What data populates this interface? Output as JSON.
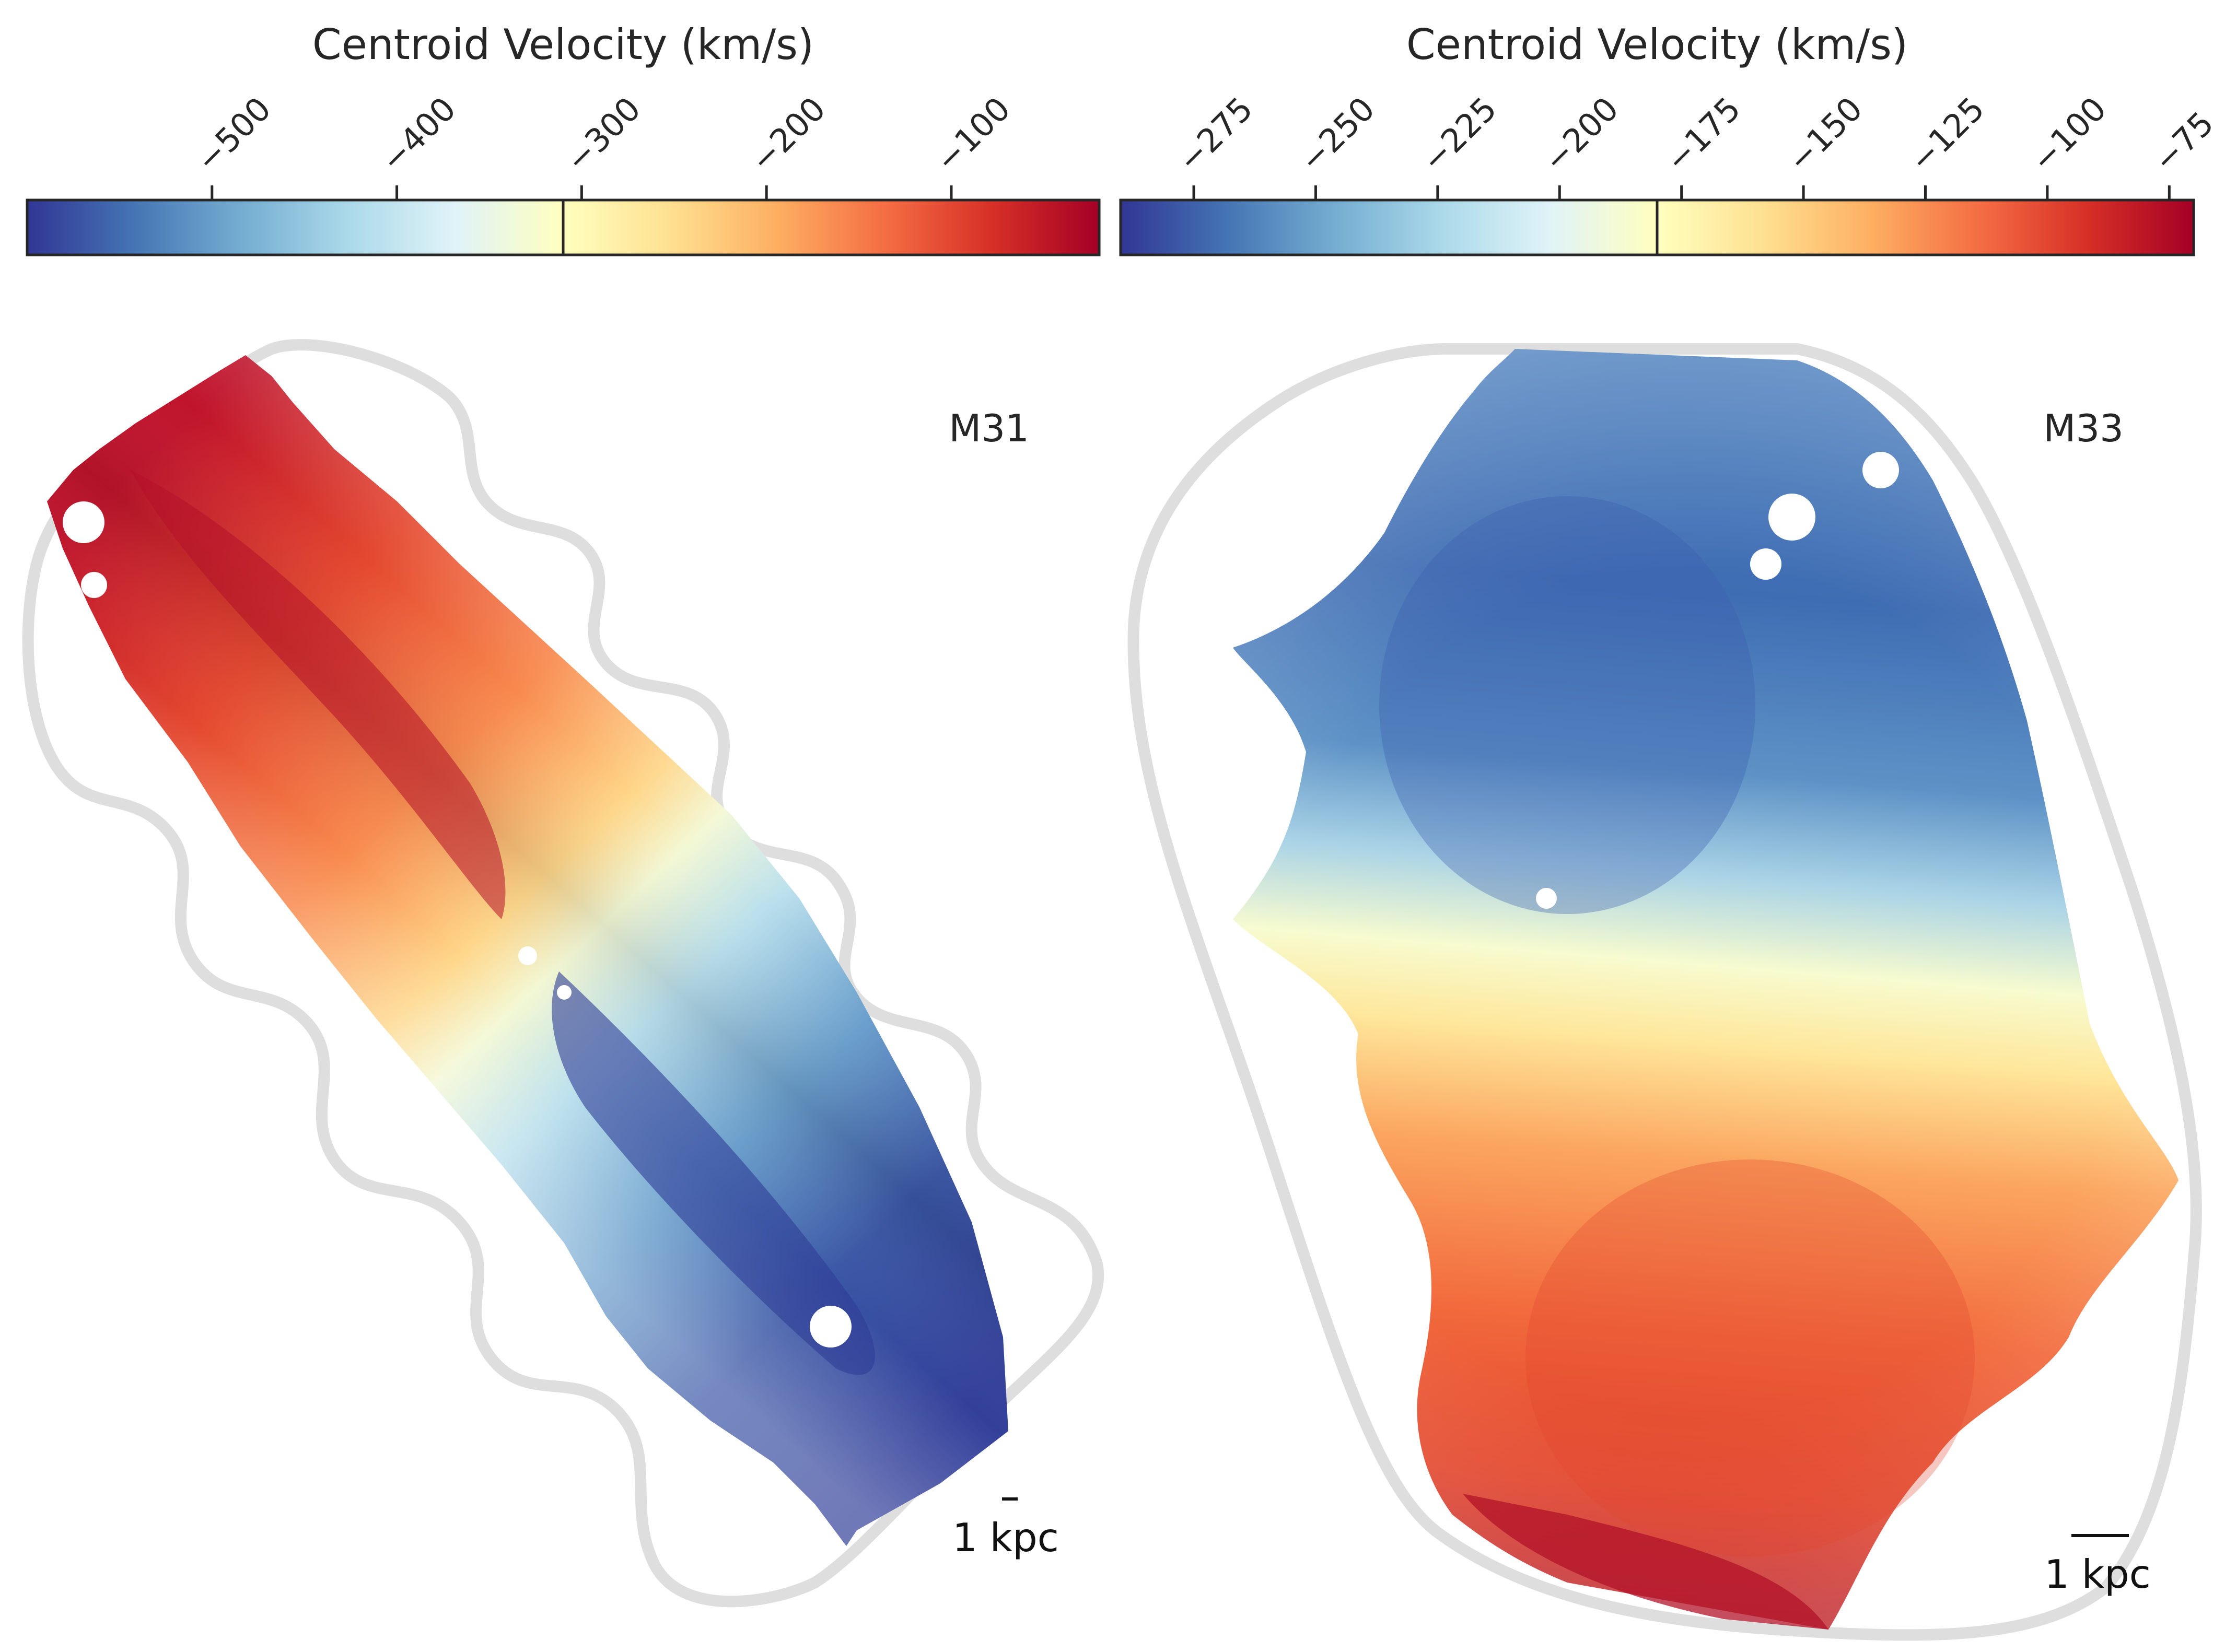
{
  "panels": [
    {
      "galaxy": "M31",
      "colorbar": {
        "title": "Centroid Velocity (km/s)",
        "min": -600,
        "max": -20,
        "center": -300,
        "ticks": [
          {
            "value": -500,
            "label": "−500"
          },
          {
            "value": -400,
            "label": "−400"
          },
          {
            "value": -300,
            "label": "−300"
          },
          {
            "value": -200,
            "label": "−200"
          },
          {
            "value": -100,
            "label": "−100"
          }
        ]
      },
      "scale_bar": "1 kpc"
    },
    {
      "galaxy": "M33",
      "colorbar": {
        "title": "Centroid Velocity (km/s)",
        "min": -290,
        "max": -70,
        "center": -180,
        "ticks": [
          {
            "value": -275,
            "label": "−275"
          },
          {
            "value": -250,
            "label": "−250"
          },
          {
            "value": -225,
            "label": "−225"
          },
          {
            "value": -200,
            "label": "−200"
          },
          {
            "value": -175,
            "label": "−175"
          },
          {
            "value": -150,
            "label": "−150"
          },
          {
            "value": -125,
            "label": "−125"
          },
          {
            "value": -100,
            "label": "−100"
          },
          {
            "value": -75,
            "label": "−75"
          }
        ]
      },
      "scale_bar": "1 kpc"
    }
  ],
  "colormap": {
    "name": "RdYlBu_r",
    "stops": [
      "#313695",
      "#4575b4",
      "#74add1",
      "#abd9e9",
      "#e0f3f8",
      "#ffffbf",
      "#fee090",
      "#fdae61",
      "#f46d43",
      "#d73027",
      "#a50026"
    ]
  },
  "outline_color": "#dcdcdc"
}
